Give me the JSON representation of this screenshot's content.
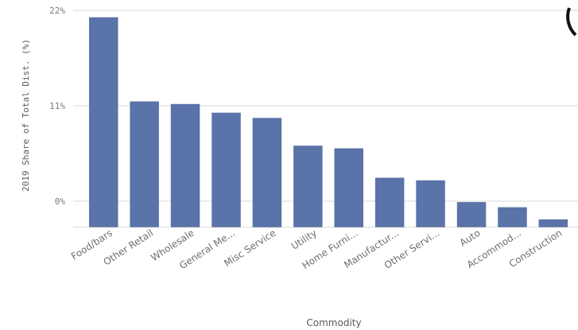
{
  "chart_data": {
    "type": "bar",
    "title": "",
    "xlabel": "Commodity",
    "ylabel": "2019 Share of Total Dist. (%)",
    "categories": [
      "Food/bars",
      "Other Retail",
      "Wholesale",
      "General Me...",
      "Misc Service",
      "Utility",
      "Home Furni...",
      "Manufactur...",
      "Other Servi...",
      "Auto",
      "Accommod...",
      "Construction"
    ],
    "values": [
      21.2,
      11.5,
      11.2,
      10.2,
      9.6,
      6.4,
      6.1,
      2.7,
      2.4,
      -0.1,
      -0.7,
      -2.1
    ],
    "y_ticks": [
      {
        "value": 22,
        "label": "22%"
      },
      {
        "value": 11,
        "label": "11%"
      },
      {
        "value": 0,
        "label": "0%"
      }
    ],
    "ylim": [
      -3,
      23
    ],
    "grid": true,
    "bar_color": "#5a73a8",
    "grid_color": "#d9d9d9"
  }
}
